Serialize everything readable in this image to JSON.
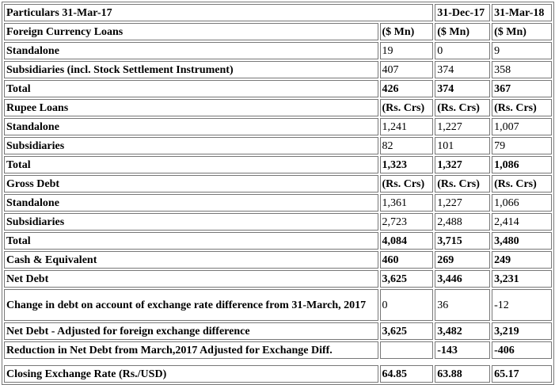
{
  "header": {
    "col0": "Particulars 31-Mar-17",
    "col2": "31-Dec-17",
    "col3": "31-Mar-18"
  },
  "rows": [
    {
      "label": "Foreign Currency Loans",
      "v1": "($ Mn)",
      "v2": "($ Mn)",
      "v3": "($ Mn)"
    },
    {
      "label": "Standalone",
      "v1": "19",
      "v2": "0",
      "v3": "9"
    },
    {
      "label": "Subsidiaries (incl. Stock Settlement Instrument)",
      "v1": "407",
      "v2": "374",
      "v3": "358"
    },
    {
      "label": "Total",
      "v1": "426",
      "v2": "374",
      "v3": "367"
    },
    {
      "label": "Rupee Loans",
      "v1": "(Rs. Crs)",
      "v2": "(Rs. Crs)",
      "v3": "(Rs. Crs)"
    },
    {
      "label": "Standalone",
      "v1": "1,241",
      "v2": "1,227",
      "v3": "1,007"
    },
    {
      "label": "Subsidiaries",
      "v1": "82",
      "v2": "101",
      "v3": "79"
    },
    {
      "label": "Total",
      "v1": "1,323",
      "v2": "1,327",
      "v3": "1,086"
    },
    {
      "label": "Gross Debt",
      "v1": "(Rs. Crs)",
      "v2": "(Rs. Crs)",
      "v3": "(Rs. Crs)"
    },
    {
      "label": "Standalone",
      "v1": "1,361",
      "v2": "1,227",
      "v3": "1,066"
    },
    {
      "label": "Subsidiaries",
      "v1": "2,723",
      "v2": "2,488",
      "v3": "2,414"
    },
    {
      "label": "Total",
      "v1": "4,084",
      "v2": "3,715",
      "v3": "3,480"
    },
    {
      "label": "Cash & Equivalent",
      "v1": "460",
      "v2": "269",
      "v3": "249"
    },
    {
      "label": "Net Debt",
      "v1": "3,625",
      "v2": "3,446",
      "v3": "3,231"
    },
    {
      "label": "Change in debt on account of exchange rate difference from 31-March, 2017",
      "v1": "0",
      "v2": "36",
      "v3": "-12"
    },
    {
      "label": "Net Debt - Adjusted for foreign exchange difference",
      "v1": "3,625",
      "v2": "3,482",
      "v3": "3,219"
    },
    {
      "label": "Reduction in Net Debt from March,2017 Adjusted for Exchange Diff.",
      "v1": "",
      "v2": "-143",
      "v3": "-406"
    },
    {
      "label": "Closing Exchange Rate (Rs./USD)",
      "v1": "64.85",
      "v2": "63.88",
      "v3": "65.17"
    }
  ]
}
